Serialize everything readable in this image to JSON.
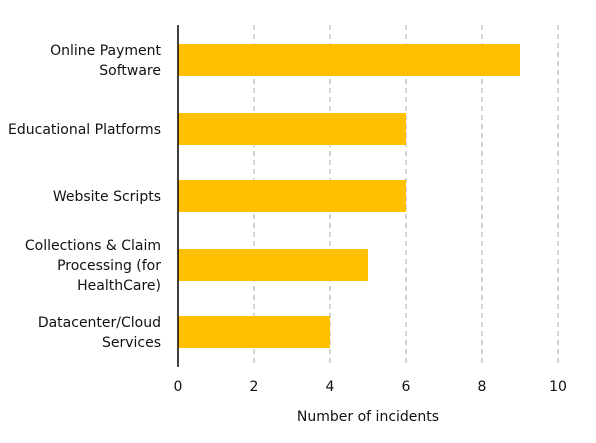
{
  "chart_data": {
    "type": "bar",
    "orientation": "horizontal",
    "categories": [
      [
        "Online Payment",
        "Software"
      ],
      [
        "Educational Platforms"
      ],
      [
        "Website Scripts"
      ],
      [
        "Collections & Claim",
        "Processing (for",
        "HealthCare)"
      ],
      [
        "Datacenter/Cloud",
        "Services"
      ]
    ],
    "values": [
      9,
      6,
      6,
      5,
      4
    ],
    "xlabel": "Number of incidents",
    "ylabel": "",
    "xlim": [
      0,
      10
    ],
    "xticks": [
      0,
      2,
      4,
      6,
      8,
      10
    ],
    "grid": "vertical-dashed",
    "bar_color": "#FFC000",
    "grid_color": "#aaaaaa",
    "axis_color": "#000000"
  }
}
